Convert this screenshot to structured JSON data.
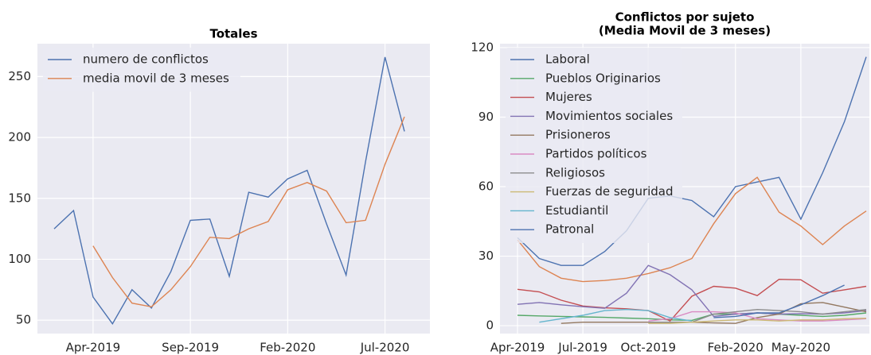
{
  "chart_data": [
    {
      "type": "line",
      "title": [
        "Totales"
      ],
      "categories": [
        null,
        null,
        "Apr-2019",
        null,
        null,
        null,
        null,
        "Sep-2019",
        null,
        null,
        null,
        null,
        "Feb-2020",
        null,
        null,
        null,
        null,
        "Jul-2020",
        null
      ],
      "series": [
        {
          "name": "numero de conflictos",
          "color": "#4c72b0",
          "values": [
            125,
            140,
            69,
            47,
            75,
            60,
            90,
            132,
            133,
            86,
            155,
            151,
            166,
            173,
            129,
            87,
            180,
            266,
            205
          ]
        },
        {
          "name": "media movil de 3 meses",
          "color": "#dd8452",
          "values": [
            null,
            null,
            111,
            85,
            64,
            61,
            75,
            94,
            118,
            117,
            125,
            131,
            157,
            163,
            156,
            130,
            132,
            178,
            217
          ]
        }
      ],
      "ylim": [
        39,
        277
      ],
      "yticks": [
        50,
        100,
        150,
        200,
        250
      ],
      "grid": true,
      "legend": "upper left"
    },
    {
      "type": "line",
      "title": [
        "Conflictos por sujeto",
        "(Media Movil de 3 meses)"
      ],
      "categories": [
        "Apr-2019",
        null,
        null,
        "Jul-2019",
        null,
        null,
        "Oct-2019",
        null,
        null,
        null,
        "Feb-2020",
        null,
        null,
        "May-2020",
        null,
        null,
        null
      ],
      "series": [
        {
          "name": "Laboral",
          "color": "#4c72b0",
          "values": [
            38,
            29,
            26,
            26,
            32,
            41,
            55,
            56,
            54,
            47,
            60,
            62,
            64,
            46,
            66,
            88,
            116
          ]
        },
        {
          "color": "#dd8452",
          "values": [
            37,
            25.5,
            20.5,
            19,
            19.5,
            20.5,
            22.5,
            25,
            29,
            44,
            57,
            64,
            49,
            43,
            35,
            43,
            49.5
          ]
        },
        {
          "name": "Pueblos Originarios",
          "color": "#55a868",
          "values": [
            4.5,
            4.2,
            4,
            3.8,
            3.6,
            3.3,
            3,
            2.5,
            2.3,
            5,
            5,
            5.5,
            5,
            4.5,
            4,
            4.5,
            5.5
          ]
        },
        {
          "name": "Mujeres",
          "color": "#c44e52",
          "values": [
            15.7,
            14.6,
            11,
            8.5,
            7.7,
            7.3,
            6.5,
            2,
            12.7,
            17,
            16.2,
            13,
            20,
            19.8,
            14,
            15.5,
            17
          ]
        },
        {
          "name": "Movimientos sociales",
          "color": "#8172b3",
          "values": [
            9.2,
            10,
            9,
            8.2,
            7.5,
            14,
            26,
            22,
            15.5,
            4,
            5,
            5.5,
            5,
            5.2,
            5,
            5.5,
            6.5
          ]
        },
        {
          "name": "Prisioneros",
          "color": "#937860",
          "values": [
            null,
            null,
            1,
            1.5,
            1.5,
            1.5,
            1.5,
            1.5,
            1.5,
            1.2,
            1,
            3.5,
            5,
            9.5,
            10,
            8,
            6
          ]
        },
        {
          "name": "Partidos políticos",
          "color": "#da8bc3",
          "values": [
            null,
            null,
            null,
            null,
            null,
            null,
            2,
            3,
            6,
            6,
            5.5,
            3,
            2.5,
            2,
            2,
            2.5,
            3
          ]
        },
        {
          "name": "Religiosos",
          "color": "#8c8c8c",
          "values": [
            null,
            null,
            null,
            null,
            null,
            null,
            1.5,
            1.5,
            1.5,
            5,
            6,
            7,
            6.5,
            6,
            5,
            6,
            7
          ]
        },
        {
          "name": "Fuerzas de seguridad",
          "color": "#ccb974",
          "values": [
            null,
            null,
            null,
            null,
            null,
            null,
            1,
            1,
            1.5,
            2,
            2.5,
            2.5,
            2,
            2.5,
            2.5,
            3,
            3.2
          ]
        },
        {
          "name": "Estudiantil",
          "color": "#64b5cd",
          "values": [
            null,
            1.5,
            3,
            4.5,
            6.5,
            7,
            6.5,
            3.5,
            2,
            null,
            null,
            null,
            null,
            null,
            null,
            null,
            null
          ]
        },
        {
          "name": "Patronal",
          "color": "#4c72b0",
          "values": [
            null,
            null,
            null,
            null,
            null,
            null,
            null,
            null,
            null,
            3.5,
            4,
            5.5,
            5.5,
            9,
            13,
            17.5,
            null
          ]
        }
      ],
      "ylim": [
        -3.4,
        121.7
      ],
      "yticks": [
        0,
        30,
        60,
        90,
        120
      ],
      "grid": true,
      "legend": "upper left"
    }
  ]
}
